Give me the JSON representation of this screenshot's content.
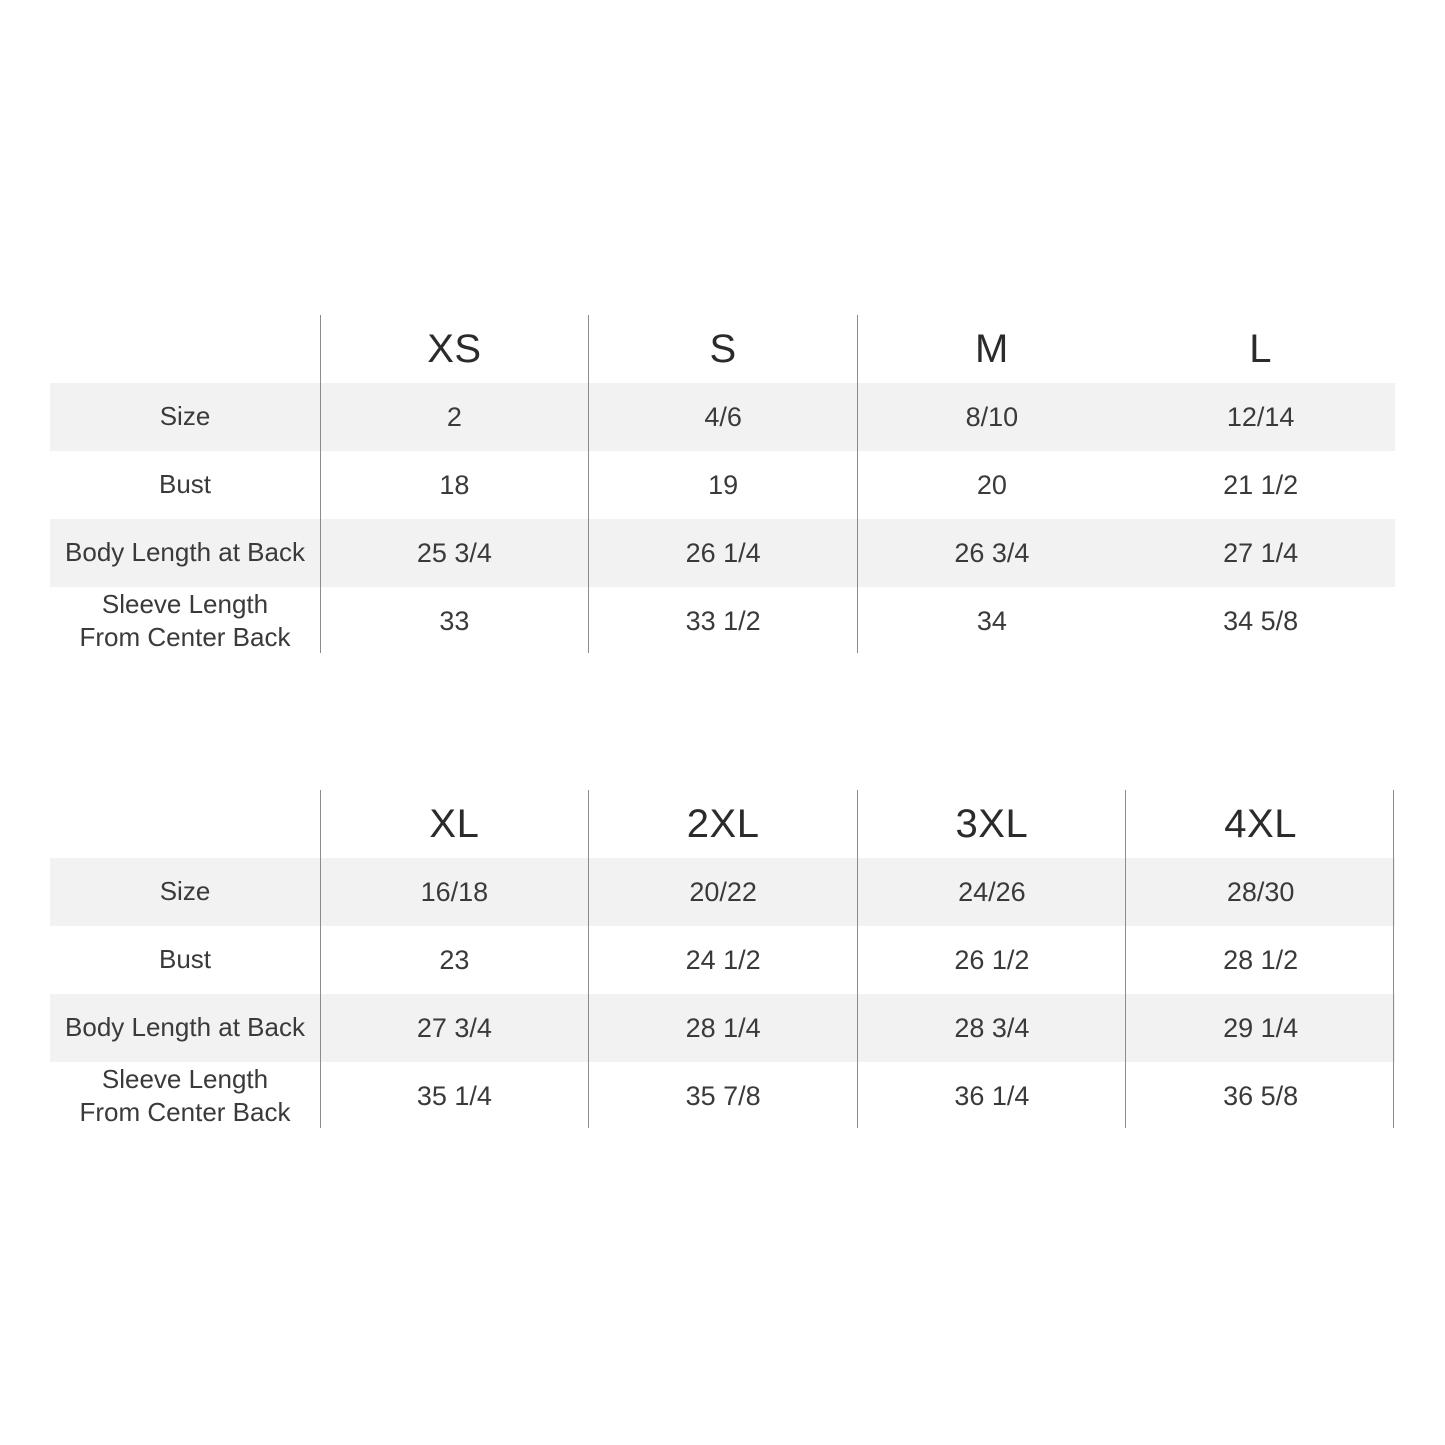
{
  "style": {
    "background": "#ffffff",
    "band_color": "#f2f2f2",
    "divider_color": "#8c8c8c",
    "text_color": "#3a3a3a",
    "header_text_color": "#2b2b2b"
  },
  "tables": [
    {
      "columns": [
        "XS",
        "S",
        "M",
        "L"
      ],
      "rows": [
        {
          "label": "Size",
          "values": [
            "2",
            "4/6",
            "8/10",
            "12/14"
          ]
        },
        {
          "label": "Bust",
          "values": [
            "18",
            "19",
            "20",
            "21 1/2"
          ]
        },
        {
          "label": "Body Length at Back",
          "values": [
            "25 3/4",
            "26 1/4",
            "26 3/4",
            "27 1/4"
          ]
        },
        {
          "label": "Sleeve Length\nFrom Center Back",
          "values": [
            "33",
            "33 1/2",
            "34",
            "34 5/8"
          ]
        }
      ]
    },
    {
      "columns": [
        "XL",
        "2XL",
        "3XL",
        "4XL"
      ],
      "rows": [
        {
          "label": "Size",
          "values": [
            "16/18",
            "20/22",
            "24/26",
            "28/30"
          ]
        },
        {
          "label": "Bust",
          "values": [
            "23",
            "24 1/2",
            "26 1/2",
            "28 1/2"
          ]
        },
        {
          "label": "Body Length at Back",
          "values": [
            "27 3/4",
            "28 1/4",
            "28 3/4",
            "29 1/4"
          ]
        },
        {
          "label": "Sleeve Length\nFrom Center Back",
          "values": [
            "35 1/4",
            "35 7/8",
            "36 1/4",
            "36 5/8"
          ]
        }
      ]
    }
  ],
  "chart_data": [
    {
      "type": "table",
      "title": "",
      "columns": [
        "",
        "XS",
        "S",
        "M",
        "L"
      ],
      "rows": [
        [
          "Size",
          "2",
          "4/6",
          "8/10",
          "12/14"
        ],
        [
          "Bust",
          "18",
          "19",
          "20",
          "21 1/2"
        ],
        [
          "Body Length at Back",
          "25 3/4",
          "26 1/4",
          "26 3/4",
          "27 1/4"
        ],
        [
          "Sleeve Length From Center Back",
          "33",
          "33 1/2",
          "34",
          "34 5/8"
        ]
      ],
      "layout": "shaded alternating rows (Size and Body Length at Back), thin gray column dividers, units in inches"
    },
    {
      "type": "table",
      "title": "",
      "columns": [
        "",
        "XL",
        "2XL",
        "3XL",
        "4XL"
      ],
      "rows": [
        [
          "Size",
          "16/18",
          "20/22",
          "24/26",
          "28/30"
        ],
        [
          "Bust",
          "23",
          "24 1/2",
          "26 1/2",
          "28 1/2"
        ],
        [
          "Body Length at Back",
          "27 3/4",
          "28 1/4",
          "28 3/4",
          "29 1/4"
        ],
        [
          "Sleeve Length From Center Back",
          "35 1/4",
          "35 7/8",
          "36 1/4",
          "36 5/8"
        ]
      ],
      "layout": "shaded alternating rows (Size and Body Length at Back), thin gray column dividers, units in inches"
    }
  ]
}
